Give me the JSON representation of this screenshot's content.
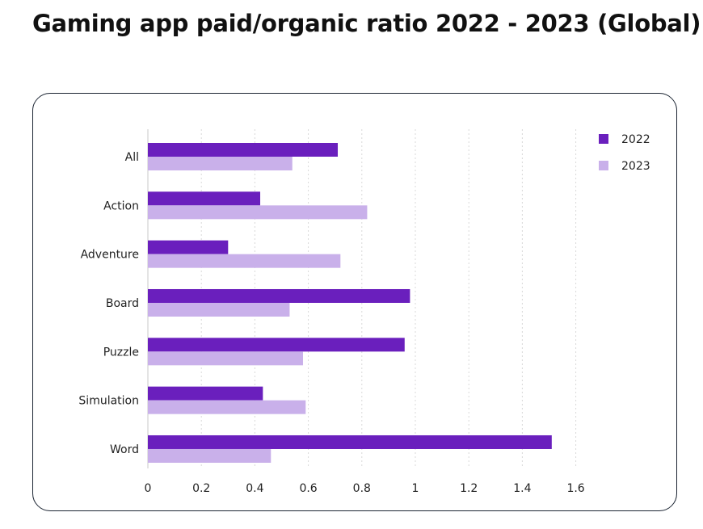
{
  "title": "Gaming app paid/organic ratio 2022 - 2023 (Global)",
  "chart_data": {
    "type": "bar",
    "orientation": "horizontal",
    "categories": [
      "All",
      "Action",
      "Adventure",
      "Board",
      "Puzzle",
      "Simulation",
      "Word"
    ],
    "series": [
      {
        "name": "2022",
        "color": "#6a1fbd",
        "values": [
          0.71,
          0.42,
          0.3,
          0.98,
          0.96,
          0.43,
          1.51
        ]
      },
      {
        "name": "2023",
        "color": "#c9b0ea",
        "values": [
          0.54,
          0.82,
          0.72,
          0.53,
          0.58,
          0.59,
          0.46
        ]
      }
    ],
    "xticks": [
      0,
      0.2,
      0.4,
      0.6,
      0.8,
      1,
      1.2,
      1.4,
      1.6
    ],
    "xlim": [
      0,
      1.6
    ],
    "grid": true,
    "legend": "top-right"
  }
}
